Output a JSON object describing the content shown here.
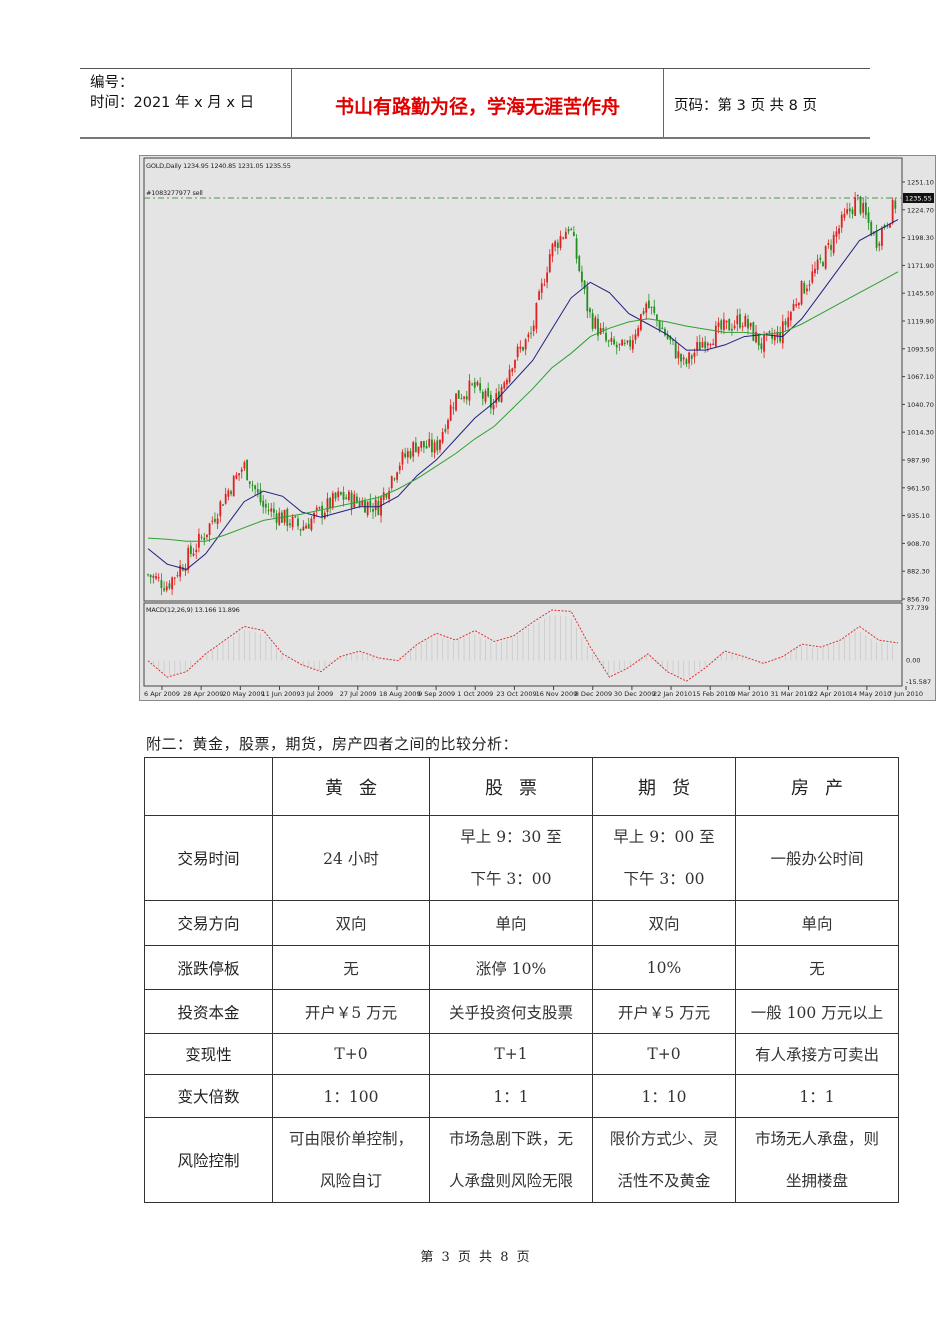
{
  "header": {
    "number_label": "编号：",
    "date_label": "时间：2021 年 x 月 x 日",
    "motto": "书山有路勤为径，学海无涯苦作舟",
    "page_info": "页码：第 3 页  共 8 页"
  },
  "chart_data": {
    "type": "candlestick",
    "title": "GOLD,Daily  1234.95 1240.85 1231.05 1235.55",
    "order_line_label": "#1083277977 sell",
    "order_line_price": 1235.55,
    "current_price_tag": "1235.55",
    "y_ticks": [
      "1251.10",
      "1224.70",
      "1198.30",
      "1171.90",
      "1145.50",
      "1119.90",
      "1093.50",
      "1067.10",
      "1040.70",
      "1014.30",
      "987.90",
      "961.50",
      "935.10",
      "908.70",
      "882.30",
      "856.70"
    ],
    "ylim": [
      856.7,
      1256
    ],
    "x_ticks": [
      "6 Apr 2009",
      "28 Apr 2009",
      "20 May 2009",
      "11 Jun 2009",
      "3 Jul 2009",
      "27 Jul 2009",
      "18 Aug 2009",
      "9 Sep 2009",
      "1 Oct 2009",
      "23 Oct 2009",
      "16 Nov 2009",
      "8 Dec 2009",
      "30 Dec 2009",
      "22 Jan 2010",
      "15 Feb 2010",
      "9 Mar 2010",
      "31 Mar 2010",
      "22 Apr 2010",
      "14 May 2010",
      "7 Jun 2010"
    ],
    "price_path": {
      "x": [
        "6 Apr 2009",
        "17 Apr 2009",
        "28 Apr 2009",
        "9 May 2009",
        "20 May 2009",
        "1 Jun 2009",
        "11 Jun 2009",
        "22 Jun 2009",
        "3 Jul 2009",
        "15 Jul 2009",
        "27 Jul 2009",
        "7 Aug 2009",
        "18 Aug 2009",
        "29 Aug 2009",
        "9 Sep 2009",
        "20 Sep 2009",
        "1 Oct 2009",
        "12 Oct 2009",
        "23 Oct 2009",
        "4 Nov 2009",
        "16 Nov 2009",
        "27 Nov 2009",
        "3 Dec 2009",
        "8 Dec 2009",
        "19 Dec 2009",
        "30 Dec 2009",
        "11 Jan 2010",
        "22 Jan 2010",
        "3 Feb 2010",
        "15 Feb 2010",
        "26 Feb 2010",
        "9 Mar 2010",
        "20 Mar 2010",
        "31 Mar 2010",
        "11 Apr 2010",
        "22 Apr 2010",
        "3 May 2010",
        "14 May 2010",
        "25 May 2010",
        "7 Jun 2010"
      ],
      "close": [
        880,
        870,
        895,
        920,
        955,
        985,
        945,
        935,
        925,
        940,
        955,
        950,
        945,
        985,
        1005,
        1000,
        1050,
        1060,
        1040,
        1085,
        1110,
        1190,
        1215,
        1130,
        1100,
        1095,
        1140,
        1110,
        1080,
        1105,
        1115,
        1125,
        1100,
        1110,
        1150,
        1175,
        1210,
        1240,
        1200,
        1235
      ]
    },
    "ma_fast": [
      905,
      890,
      885,
      900,
      925,
      950,
      960,
      955,
      940,
      935,
      940,
      945,
      945,
      955,
      975,
      990,
      1010,
      1030,
      1045,
      1065,
      1085,
      1115,
      1145,
      1160,
      1150,
      1130,
      1120,
      1110,
      1095,
      1095,
      1100,
      1108,
      1110,
      1108,
      1125,
      1150,
      1175,
      1200,
      1210,
      1220
    ],
    "ma_slow": [
      915,
      914,
      912,
      912,
      918,
      925,
      932,
      935,
      938,
      942,
      946,
      950,
      954,
      962,
      972,
      984,
      996,
      1010,
      1022,
      1040,
      1058,
      1078,
      1092,
      1108,
      1116,
      1122,
      1125,
      1122,
      1118,
      1115,
      1112,
      1112,
      1110,
      1112,
      1120,
      1130,
      1140,
      1150,
      1160,
      1170
    ],
    "indicator": {
      "title": "MACD(12,26,9) 13.166 11.896",
      "y_ticks": [
        "37.739",
        "0.00",
        "-15.587"
      ],
      "ylim": [
        -15.587,
        37.739
      ],
      "signal": [
        0,
        -12,
        -8,
        5,
        15,
        25,
        22,
        5,
        -3,
        -8,
        3,
        7,
        2,
        0,
        12,
        20,
        15,
        22,
        14,
        18,
        28,
        37,
        36,
        10,
        -12,
        -5,
        5,
        -8,
        -15,
        -5,
        7,
        3,
        -2,
        3,
        12,
        10,
        15,
        25,
        15,
        13
      ],
      "histogram_color": "#c8c8c8",
      "signal_color": "#e03030"
    },
    "colors": {
      "bull_candle": "#e02020",
      "bear_candle": "#209020",
      "ma_fast": "#202080",
      "ma_slow": "#30a030",
      "order_line": "#40a040",
      "background": "#e4e4e4"
    }
  },
  "comparison": {
    "caption": "附二：黄金，股票，期货，房产四者之间的比较分析：",
    "columns": [
      "",
      "黄金",
      "股票",
      "期货",
      "房产"
    ],
    "rows": [
      {
        "label": "交易时间",
        "cells": [
          [
            "24 小时"
          ],
          [
            "早上 9：30 至",
            "下午 3：00"
          ],
          [
            "早上 9：00 至",
            "下午 3：00"
          ],
          [
            "一般办公时间"
          ]
        ]
      },
      {
        "label": "交易方向",
        "cells": [
          [
            "双向"
          ],
          [
            "单向"
          ],
          [
            "双向"
          ],
          [
            "单向"
          ]
        ]
      },
      {
        "label": "涨跌停板",
        "cells": [
          [
            "无"
          ],
          [
            "涨停 10%"
          ],
          [
            "10%"
          ],
          [
            "无"
          ]
        ]
      },
      {
        "label": "投资本金",
        "cells": [
          [
            "开户￥5 万元"
          ],
          [
            "关乎投资何支股票"
          ],
          [
            "开户￥5 万元"
          ],
          [
            "一般 100 万元以上"
          ]
        ]
      },
      {
        "label": "变现性",
        "cells": [
          [
            "T+0"
          ],
          [
            "T+1"
          ],
          [
            "T+0"
          ],
          [
            "有人承接方可卖出"
          ]
        ]
      },
      {
        "label": "变大倍数",
        "cells": [
          [
            "1：100"
          ],
          [
            "1：1"
          ],
          [
            "1：10"
          ],
          [
            "1：1"
          ]
        ]
      },
      {
        "label": "风险控制",
        "cells": [
          [
            "可由限价单控制，",
            "风险自订"
          ],
          [
            "市场急剧下跌，无",
            "人承盘则风险无限"
          ],
          [
            "限价方式少、灵",
            "活性不及黄金"
          ],
          [
            "市场无人承盘，则",
            "坐拥楼盘"
          ]
        ]
      }
    ]
  },
  "footer": {
    "page_text": "第 3 页 共 8 页"
  }
}
